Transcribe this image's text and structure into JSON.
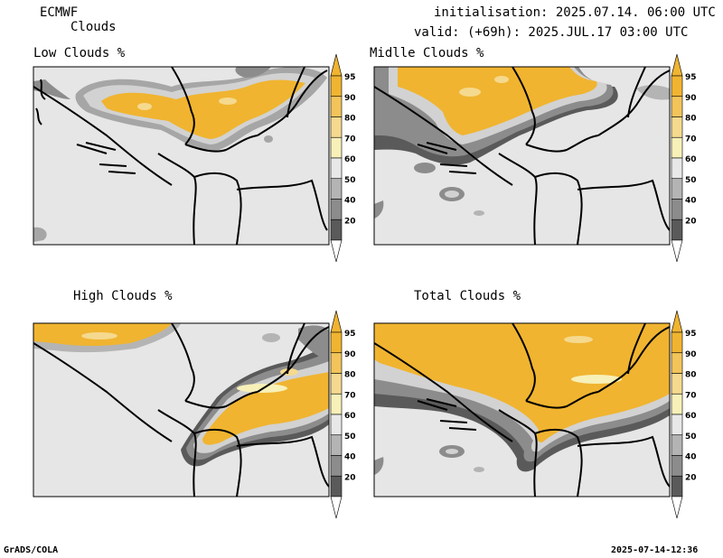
{
  "header": {
    "model": "ECMWF",
    "product": "Clouds",
    "initialisation": "initialisation: 2025.07.14. 06:00 UTC",
    "valid": "valid: (+69h): 2025.JUL.17 03:00 UTC"
  },
  "panels": [
    {
      "title": "Low Clouds %"
    },
    {
      "title": "Midlle Clouds %"
    },
    {
      "title": "High Clouds %"
    },
    {
      "title": "Total Clouds %"
    }
  ],
  "colorbar": {
    "ticks": [
      "95",
      "90",
      "80",
      "70",
      "60",
      "50",
      "40",
      "20"
    ],
    "colors": [
      "#f0b430",
      "#f2c45a",
      "#f5d98e",
      "#f7f0b8",
      "#e8e8e8",
      "#b4b4b4",
      "#8c8c8c",
      "#5a5a5a"
    ]
  },
  "footer": {
    "left": "GrADS/COLA",
    "right": "2025-07-14-12:36"
  }
}
